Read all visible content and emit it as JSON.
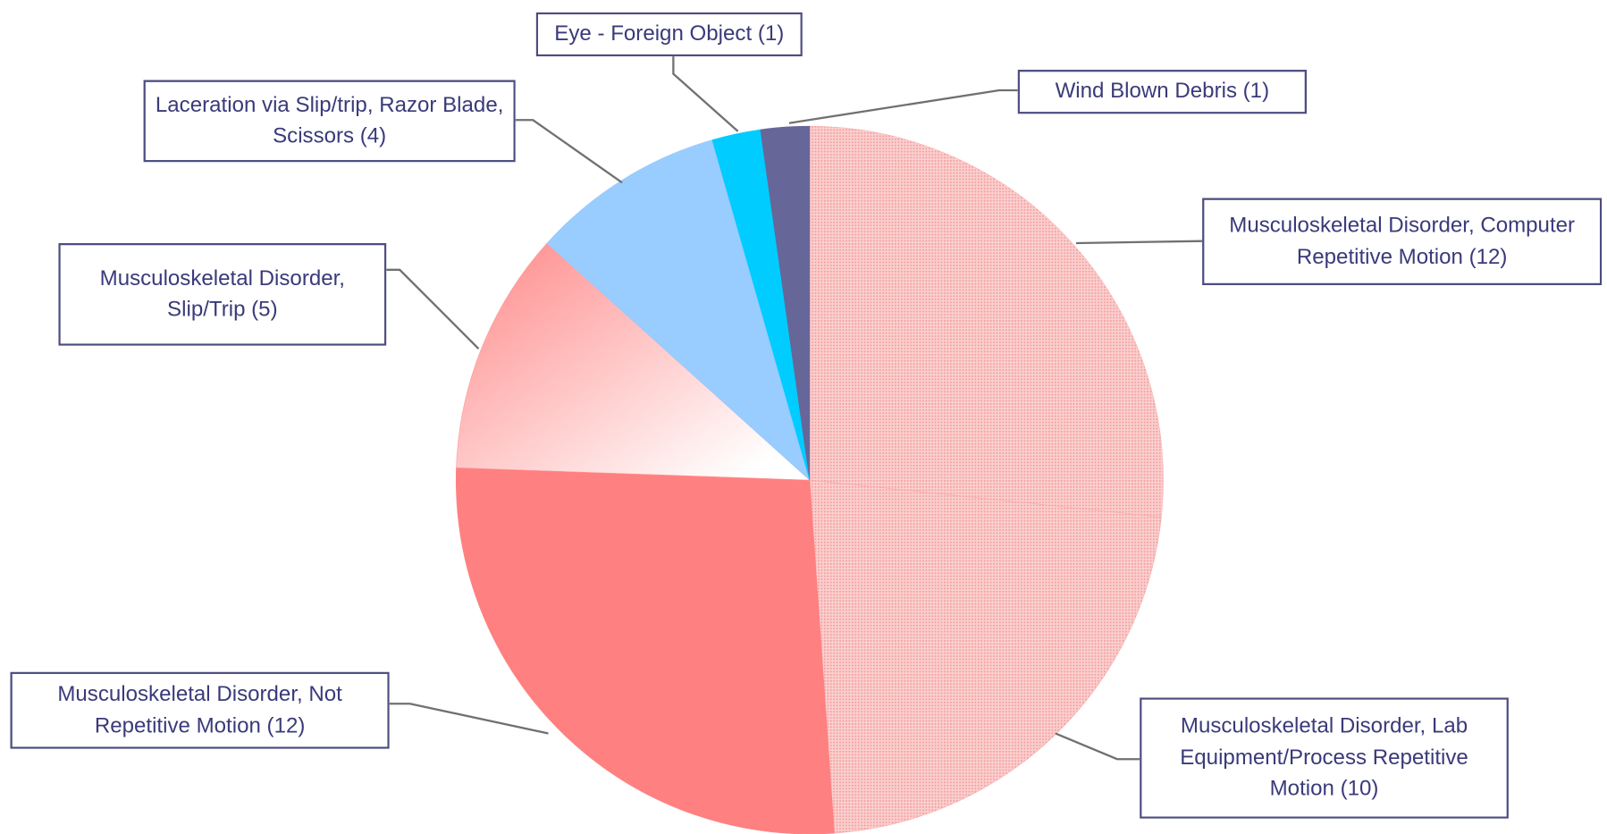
{
  "chart_data": {
    "type": "pie",
    "categories": [
      "Musculoskeletal Disorder, Computer Repetitive Motion (12)",
      "Musculoskeletal Disorder, Lab Equipment/Process Repetitive Motion (10)",
      "Musculoskeletal Disorder, Not Repetitive Motion (12)",
      "Musculoskeletal Disorder, Slip/Trip (5)",
      "Laceration via Slip/trip, Razor Blade, Scissors (4)",
      "Eye - Foreign Object (1)",
      "Wind Blown Debris (1)"
    ],
    "values": [
      12,
      10,
      12,
      5,
      4,
      1,
      1
    ],
    "colors": [
      "#f9b4b4",
      "#f7a6a6",
      "#ff8080",
      "#ff9999",
      "#99ccff",
      "#00ccff",
      "#666699"
    ]
  }
}
